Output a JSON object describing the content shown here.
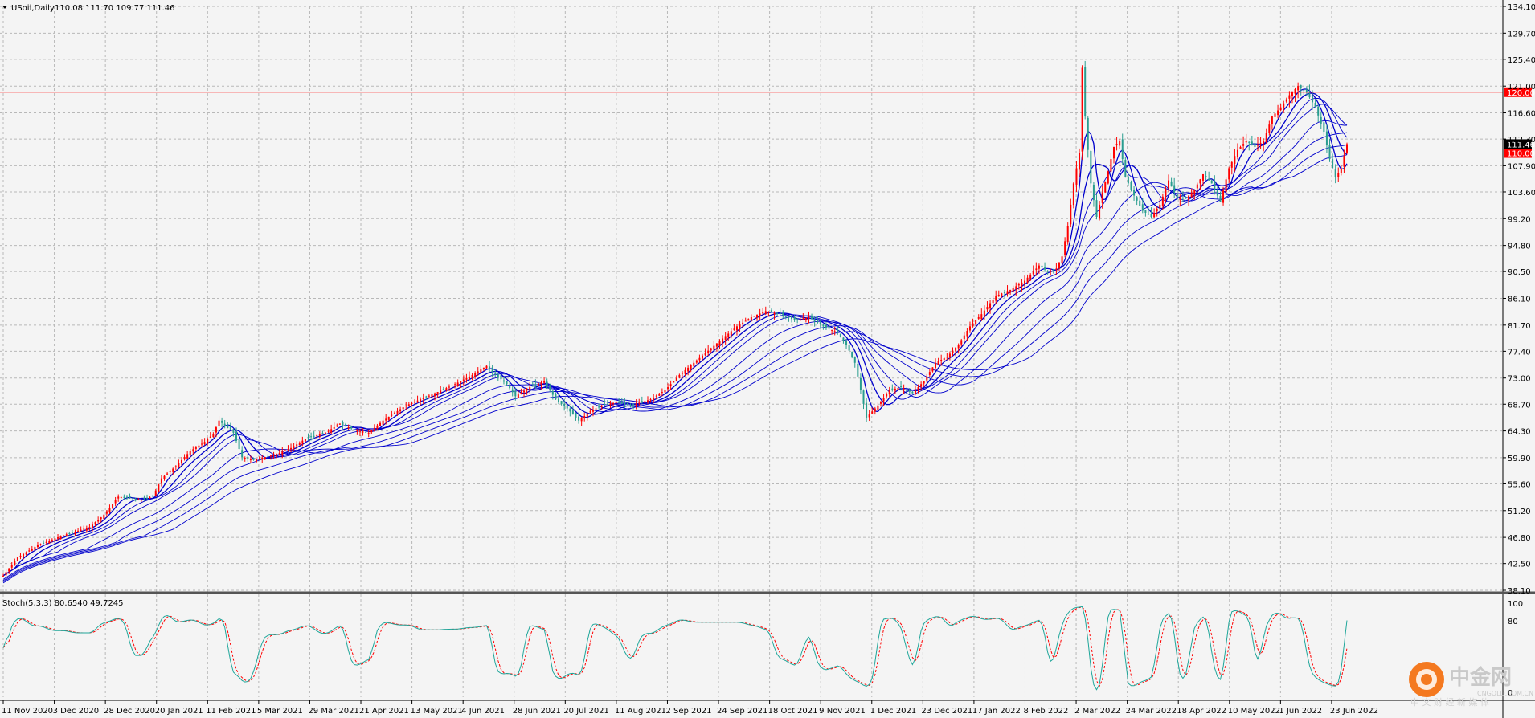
{
  "header": {
    "symbol_label": "USoil,Daily",
    "ohlc_label": "110.08 111.70 109.77 111.46"
  },
  "stoch_header": {
    "label": "Stoch(5,3,3) 80.6540 49.7245"
  },
  "watermark": {
    "text": "中金网",
    "subtext": "CNGOLD.COM.CN",
    "tagline": "中 文 财 经 新 媒 体"
  },
  "colors": {
    "background": "#f4f4f4",
    "grid": "#b8b8b8",
    "bull_candle": "#ff0000",
    "bear_candle": "#2a9d8f",
    "ma_ribbon": "#0000cc",
    "level_line": "#ff0000",
    "current_price_tag": "#000000",
    "stoch_main": "#1fa69a",
    "stoch_signal": "#ff0000"
  },
  "chart_data": {
    "type": "candlestick",
    "title": "USoil,Daily",
    "last_ohlc": {
      "open": 110.08,
      "high": 111.7,
      "low": 109.77,
      "close": 111.46
    },
    "y_ticks": [
      "134.10",
      "129.70",
      "125.40",
      "121.00",
      "116.60",
      "112.30",
      "107.90",
      "103.60",
      "99.20",
      "94.80",
      "90.50",
      "86.10",
      "81.70",
      "77.40",
      "73.00",
      "68.70",
      "64.30",
      "59.90",
      "55.60",
      "51.20",
      "46.80",
      "42.50",
      "38.10"
    ],
    "ylim": [
      38.1,
      134.1
    ],
    "x_ticks": [
      "11 Nov 2020",
      "3 Dec 2020",
      "28 Dec 2020",
      "20 Jan 2021",
      "11 Feb 2021",
      "5 Mar 2021",
      "29 Mar 2021",
      "21 Apr 2021",
      "13 May 2021",
      "4 Jun 2021",
      "28 Jun 2021",
      "20 Jul 2021",
      "11 Aug 2021",
      "2 Sep 2021",
      "24 Sep 2021",
      "18 Oct 2021",
      "9 Nov 2021",
      "1 Dec 2021",
      "23 Dec 2021",
      "17 Jan 2022",
      "8 Feb 2022",
      "2 Mar 2022",
      "24 Mar 2022",
      "18 Apr 2022",
      "10 May 2022",
      "1 Jun 2022",
      "23 Jun 2022"
    ],
    "price_path": [
      [
        0,
        40.5
      ],
      [
        5,
        43.5
      ],
      [
        12,
        45.5
      ],
      [
        20,
        47.0
      ],
      [
        30,
        48.5
      ],
      [
        35,
        50.5
      ],
      [
        40,
        53.5
      ],
      [
        48,
        53.0
      ],
      [
        52,
        53.5
      ],
      [
        55,
        56.5
      ],
      [
        60,
        58.5
      ],
      [
        65,
        61.0
      ],
      [
        70,
        62.5
      ],
      [
        73,
        63.8
      ],
      [
        75,
        66.0
      ],
      [
        80,
        64.0
      ],
      [
        83,
        60.0
      ],
      [
        87,
        59.5
      ],
      [
        95,
        60.5
      ],
      [
        100,
        61.5
      ],
      [
        105,
        63.0
      ],
      [
        112,
        64.0
      ],
      [
        117,
        65.5
      ],
      [
        122,
        64.5
      ],
      [
        127,
        64.0
      ],
      [
        132,
        66.0
      ],
      [
        140,
        68.5
      ],
      [
        150,
        70.5
      ],
      [
        157,
        72.0
      ],
      [
        163,
        73.5
      ],
      [
        168,
        75.0
      ],
      [
        170,
        74.0
      ],
      [
        175,
        72.0
      ],
      [
        178,
        70.0
      ],
      [
        183,
        71.5
      ],
      [
        188,
        72.5
      ],
      [
        192,
        69.5
      ],
      [
        196,
        68.0
      ],
      [
        200,
        66.0
      ],
      [
        204,
        67.5
      ],
      [
        208,
        68.5
      ],
      [
        213,
        69.0
      ],
      [
        218,
        68.5
      ],
      [
        225,
        69.5
      ],
      [
        230,
        71.0
      ],
      [
        235,
        73.5
      ],
      [
        240,
        75.5
      ],
      [
        245,
        77.5
      ],
      [
        250,
        79.5
      ],
      [
        255,
        81.5
      ],
      [
        260,
        83.0
      ],
      [
        265,
        84.0
      ],
      [
        270,
        83.5
      ],
      [
        275,
        82.5
      ],
      [
        280,
        83.0
      ],
      [
        285,
        81.5
      ],
      [
        290,
        80.5
      ],
      [
        293,
        78.5
      ],
      [
        296,
        75.5
      ],
      [
        300,
        66.5
      ],
      [
        304,
        68.5
      ],
      [
        308,
        71.0
      ],
      [
        312,
        71.5
      ],
      [
        316,
        70.5
      ],
      [
        320,
        72.5
      ],
      [
        324,
        75.5
      ],
      [
        328,
        76.5
      ],
      [
        332,
        78.5
      ],
      [
        336,
        81.5
      ],
      [
        340,
        83.5
      ],
      [
        345,
        86.5
      ],
      [
        350,
        87.5
      ],
      [
        355,
        89.0
      ],
      [
        360,
        91.5
      ],
      [
        363,
        90.5
      ],
      [
        366,
        91.0
      ],
      [
        368,
        93.0
      ],
      [
        370,
        98.0
      ],
      [
        372,
        105.0
      ],
      [
        374,
        110.0
      ],
      [
        375,
        124.0
      ],
      [
        376,
        116.0
      ],
      [
        378,
        105.0
      ],
      [
        380,
        99.5
      ],
      [
        382,
        103.5
      ],
      [
        384,
        107.0
      ],
      [
        386,
        111.0
      ],
      [
        388,
        112.0
      ],
      [
        390,
        106.0
      ],
      [
        393,
        103.0
      ],
      [
        396,
        100.5
      ],
      [
        399,
        99.5
      ],
      [
        402,
        101.5
      ],
      [
        405,
        105.5
      ],
      [
        408,
        102.5
      ],
      [
        411,
        102.5
      ],
      [
        414,
        104.0
      ],
      [
        417,
        106.5
      ],
      [
        420,
        105.0
      ],
      [
        423,
        102.0
      ],
      [
        426,
        107.5
      ],
      [
        429,
        110.5
      ],
      [
        432,
        112.0
      ],
      [
        435,
        111.0
      ],
      [
        438,
        112.0
      ],
      [
        441,
        116.0
      ],
      [
        444,
        117.5
      ],
      [
        447,
        119.5
      ],
      [
        450,
        121.0
      ],
      [
        453,
        120.0
      ],
      [
        456,
        117.5
      ],
      [
        459,
        113.5
      ],
      [
        461,
        109.0
      ],
      [
        463,
        106.0
      ],
      [
        465,
        107.5
      ],
      [
        467,
        111.5
      ]
    ],
    "horizontal_levels": [
      120.0,
      110.0
    ],
    "current_price": 111.46,
    "moving_averages": {
      "periods": [
        5,
        10,
        15,
        20,
        30,
        40,
        50,
        60
      ],
      "color": "#0000cc"
    },
    "stochastic": {
      "params": "5,3,3",
      "main": 80.654,
      "signal": 49.7245,
      "y_ticks": [
        "100",
        "80",
        "0"
      ],
      "ylim": [
        0,
        100
      ]
    }
  }
}
